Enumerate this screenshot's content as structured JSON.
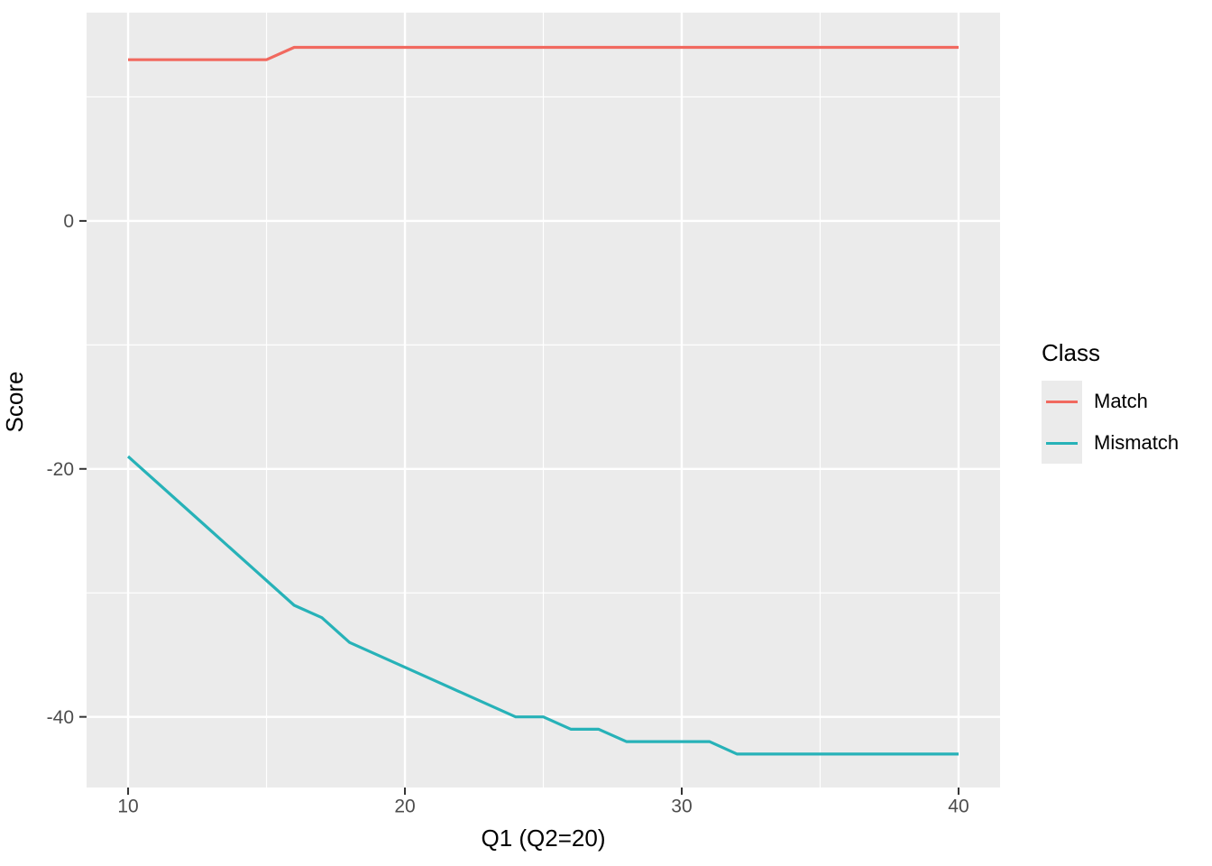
{
  "chart_data": {
    "type": "line",
    "title": "",
    "xlabel": "Q1 (Q2=20)",
    "ylabel": "Score",
    "legend_title": "Class",
    "legend_position": "right",
    "grid": true,
    "panel_bg": "#EBEBEB",
    "grid_color": "#FFFFFF",
    "tick_mark_color": "#333333",
    "tick_label_color": "#4D4D4D",
    "x": [
      10,
      11,
      12,
      13,
      14,
      15,
      16,
      17,
      18,
      19,
      20,
      21,
      22,
      23,
      24,
      25,
      26,
      27,
      28,
      29,
      30,
      31,
      32,
      33,
      34,
      35,
      36,
      37,
      38,
      39,
      40
    ],
    "series": [
      {
        "name": "Match",
        "color": "#F1695F",
        "values": [
          13,
          13,
          13,
          13,
          13,
          13,
          14,
          14,
          14,
          14,
          14,
          14,
          14,
          14,
          14,
          14,
          14,
          14,
          14,
          14,
          14,
          14,
          14,
          14,
          14,
          14,
          14,
          14,
          14,
          14,
          14
        ]
      },
      {
        "name": "Mismatch",
        "color": "#27B2B8",
        "values": [
          -19,
          -21,
          -23,
          -25,
          -27,
          -29,
          -31,
          -32,
          -34,
          -35,
          -36,
          -37,
          -38,
          -39,
          -40,
          -40,
          -41,
          -41,
          -42,
          -42,
          -42,
          -42,
          -43,
          -43,
          -43,
          -43,
          -43,
          -43,
          -43,
          -43,
          -43
        ]
      }
    ],
    "x_ticks": [
      10,
      20,
      30,
      40
    ],
    "x_tick_labels": [
      "10",
      "20",
      "30",
      "40"
    ],
    "x_minor_gridlines": [
      15,
      25,
      35
    ],
    "y_ticks": [
      0,
      -20,
      -40
    ],
    "y_tick_labels": [
      "0",
      "-20",
      "-40"
    ],
    "y_minor_gridlines": [
      10,
      -10,
      -30
    ],
    "xlim": [
      8.5,
      41.5
    ],
    "ylim": [
      -45.7,
      16.8
    ]
  }
}
